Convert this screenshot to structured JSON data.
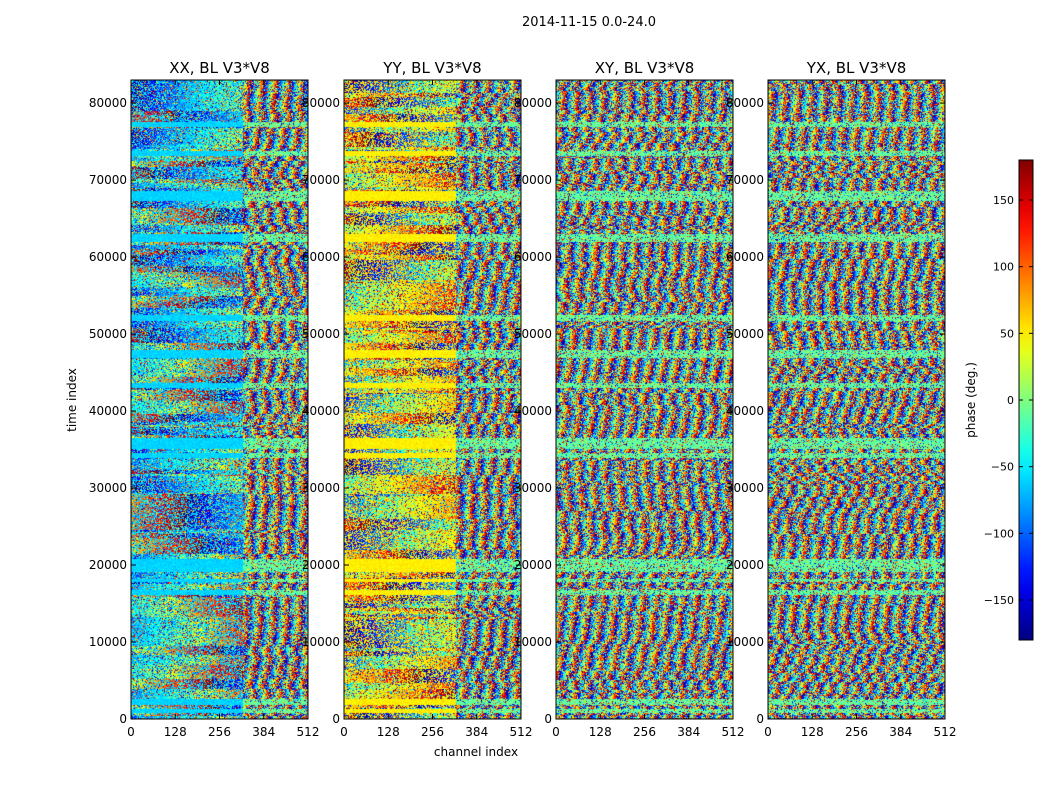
{
  "chart_data": {
    "type": "heatmap",
    "suptitle": "2014-11-15 0.0-24.0",
    "xlabel": "channel index",
    "ylabel": "time index",
    "xlim": [
      0,
      512
    ],
    "ylim": [
      0,
      83000
    ],
    "xticks": [
      0,
      128,
      256,
      384,
      512
    ],
    "yticks": [
      0,
      10000,
      20000,
      30000,
      40000,
      50000,
      60000,
      70000,
      80000
    ],
    "panels": [
      {
        "title": "XX, BL V3*V8",
        "bias": "cyan"
      },
      {
        "title": "YY, BL V3*V8",
        "bias": "yellow"
      },
      {
        "title": "XY, BL V3*V8",
        "bias": "noise"
      },
      {
        "title": "YX, BL V3*V8",
        "bias": "noise"
      }
    ],
    "colorbar": {
      "label": "phase (deg.)",
      "range": [
        -180,
        180
      ],
      "ticks": [
        -150,
        -100,
        -50,
        0,
        50,
        100,
        150
      ],
      "tick_labels": [
        "−150",
        "−100",
        "−50",
        "0",
        "50",
        "100",
        "150"
      ],
      "colormap": "jet"
    },
    "flagged_bands_time": [
      [
        900,
        1300
      ],
      [
        1900,
        2600
      ],
      [
        16200,
        16800
      ],
      [
        17800,
        18300
      ],
      [
        19200,
        20800
      ],
      [
        34000,
        34600
      ],
      [
        35200,
        36600
      ],
      [
        43000,
        43700
      ],
      [
        47000,
        48000
      ],
      [
        51800,
        52600
      ],
      [
        62000,
        63000
      ],
      [
        67400,
        68600
      ],
      [
        73200,
        73800
      ],
      [
        77000,
        77600
      ]
    ]
  }
}
